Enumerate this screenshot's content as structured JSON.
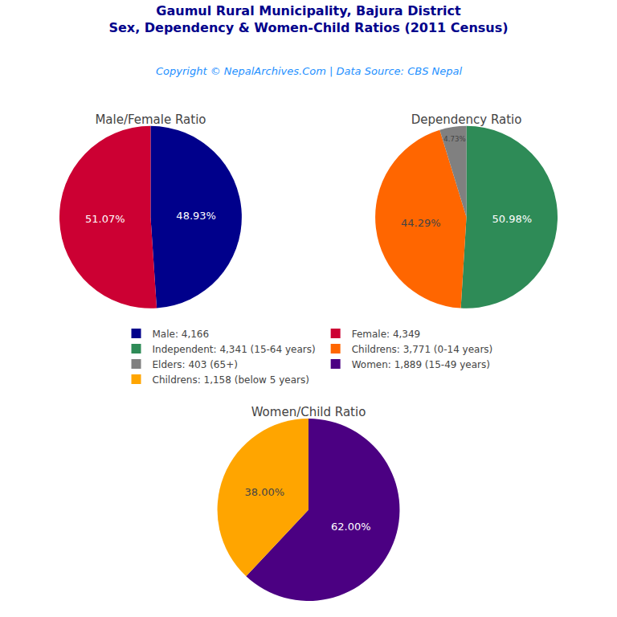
{
  "title": "Gaumul Rural Municipality, Bajura District",
  "subtitle": "Sex, Dependency & Women-Child Ratios (2011 Census)",
  "annotations": [
    "Copyright © NepalArchives.Com | Data Source: CBS Nepal"
  ],
  "title_color": "#00008B",
  "annotation_color": "#1E90FF",
  "legend": "center",
  "chart_data": [
    {
      "type": "pie",
      "title": "Male/Female Ratio",
      "categories": [
        "Male: 4,166",
        "Female: 4,349"
      ],
      "values": [
        48.93,
        51.07
      ],
      "value_labels": [
        "48.93%",
        "51.07%"
      ],
      "colors": [
        "#00008B",
        "#CC0033"
      ],
      "data_labels": true
    },
    {
      "type": "pie",
      "title": "Dependency Ratio",
      "categories": [
        "Independent: 4,341 (15-64 years)",
        "Childrens: 3,771 (0-14 years)",
        "Elders: 403 (65+)"
      ],
      "values": [
        50.98,
        44.29,
        4.73
      ],
      "value_labels": [
        "50.98%",
        "44.29%",
        "4.73%"
      ],
      "colors": [
        "#2E8B57",
        "#FF6600",
        "#808080"
      ],
      "data_labels": true
    },
    {
      "type": "pie",
      "title": "Women/Child Ratio",
      "categories": [
        "Women: 1,889 (15-49 years)",
        "Childrens: 1,158 (below 5 years)"
      ],
      "values": [
        62.0,
        38.0
      ],
      "value_labels": [
        "62.00%",
        "38.00%"
      ],
      "colors": [
        "#4B0082",
        "#FFA500"
      ],
      "data_labels": true
    }
  ]
}
